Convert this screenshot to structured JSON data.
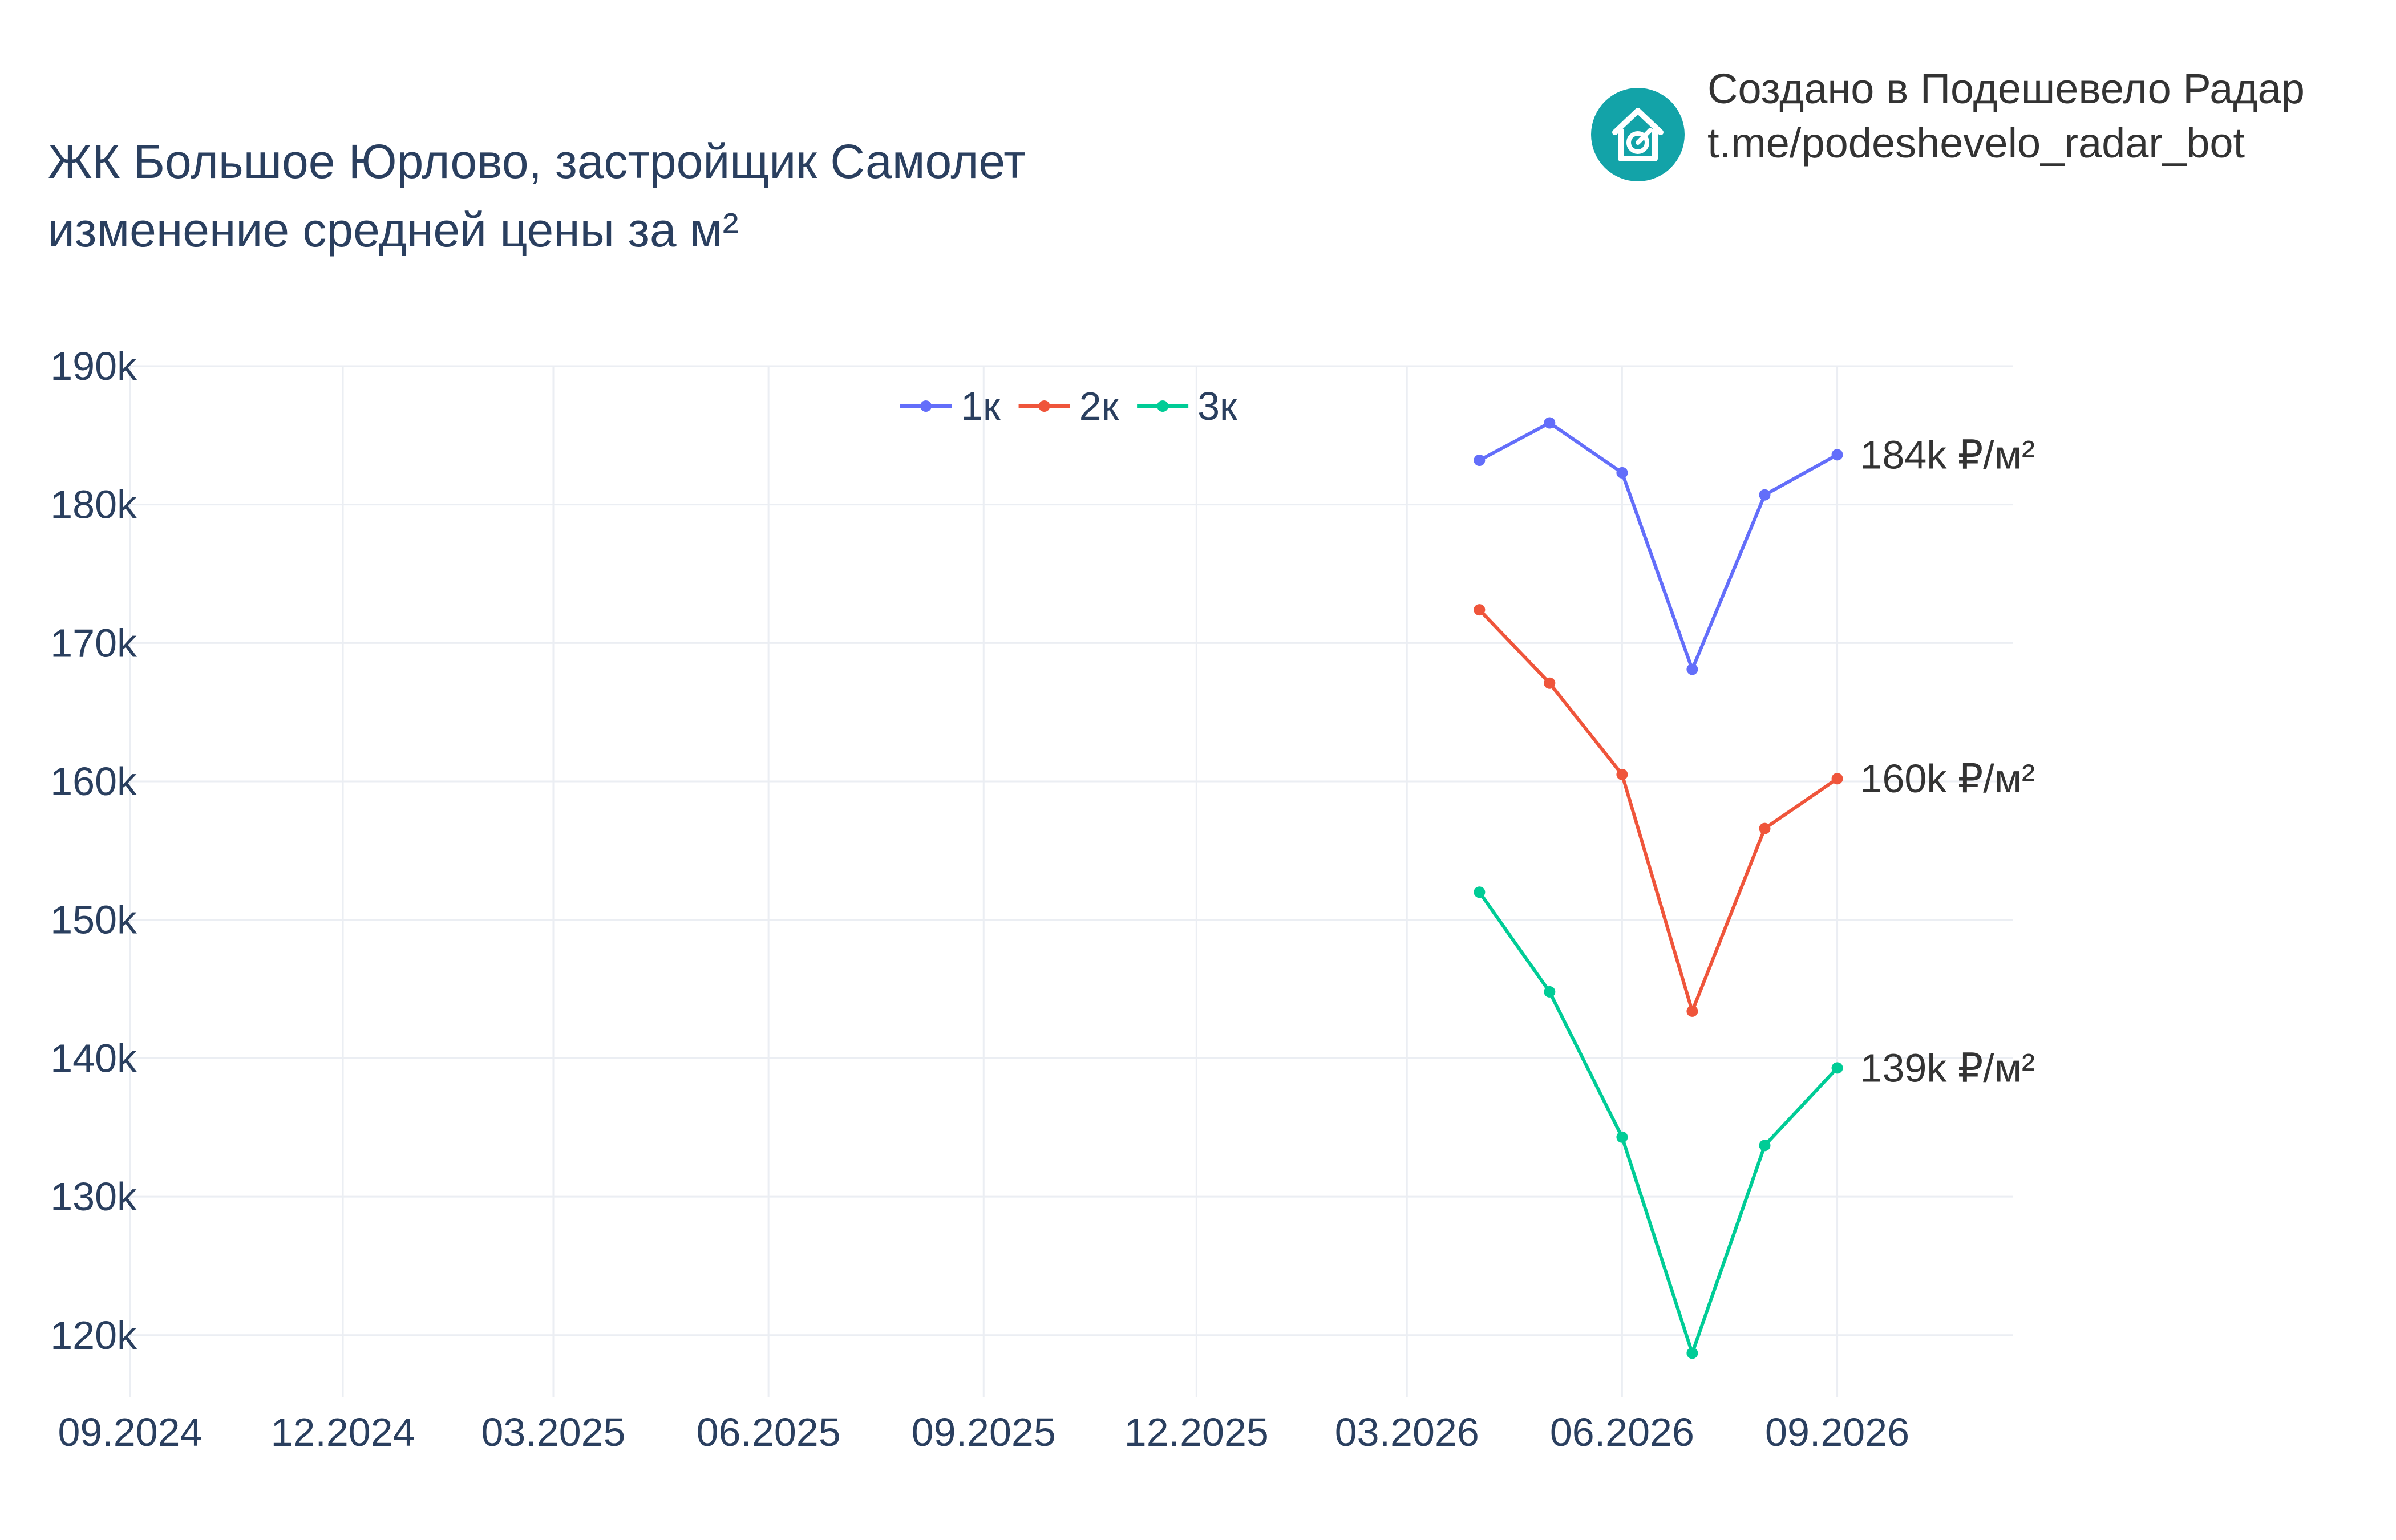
{
  "header": {
    "title_line1": "ЖК Большое Юрлово, застройщик Самолет",
    "title_line2": "изменение средней цены за м²"
  },
  "brand": {
    "line1": "Создано в Подешевело Радар",
    "line2": "t.me/podeshevelo_radar_bot",
    "icon": "house-arrow-icon",
    "color": "#13a3a8"
  },
  "chart_data": {
    "type": "line",
    "x_ticks": [
      "09.2024",
      "12.2024",
      "03.2025",
      "06.2025",
      "09.2025",
      "12.2025",
      "03.2026",
      "06.2026",
      "09.2026"
    ],
    "y_ticks": [
      "120k",
      "130k",
      "140k",
      "150k",
      "160k",
      "170k",
      "180k",
      "190k"
    ],
    "y_tick_values": [
      120000,
      130000,
      140000,
      150000,
      160000,
      170000,
      180000,
      190000
    ],
    "ylim": [
      115500,
      190000
    ],
    "xlim": [
      "2024-09-01",
      "2026-11-15"
    ],
    "x": [
      "2026-04-01",
      "2026-05-01",
      "2026-06-01",
      "2026-07-01",
      "2026-08-01",
      "2026-09-01"
    ],
    "series": [
      {
        "name": "1к",
        "color": "#636efa",
        "values": [
          183200,
          185900,
          182300,
          168100,
          180700,
          183600
        ],
        "end_label": "184k ₽/м²"
      },
      {
        "name": "2к",
        "color": "#ef553b",
        "values": [
          172400,
          167100,
          160500,
          143400,
          156600,
          160200
        ],
        "end_label": "160k ₽/м²"
      },
      {
        "name": "3к",
        "color": "#00cc96",
        "values": [
          152000,
          144800,
          134300,
          118700,
          133700,
          139300
        ],
        "end_label": "139k ₽/м²"
      }
    ],
    "grid": true,
    "legend": "top-center"
  }
}
